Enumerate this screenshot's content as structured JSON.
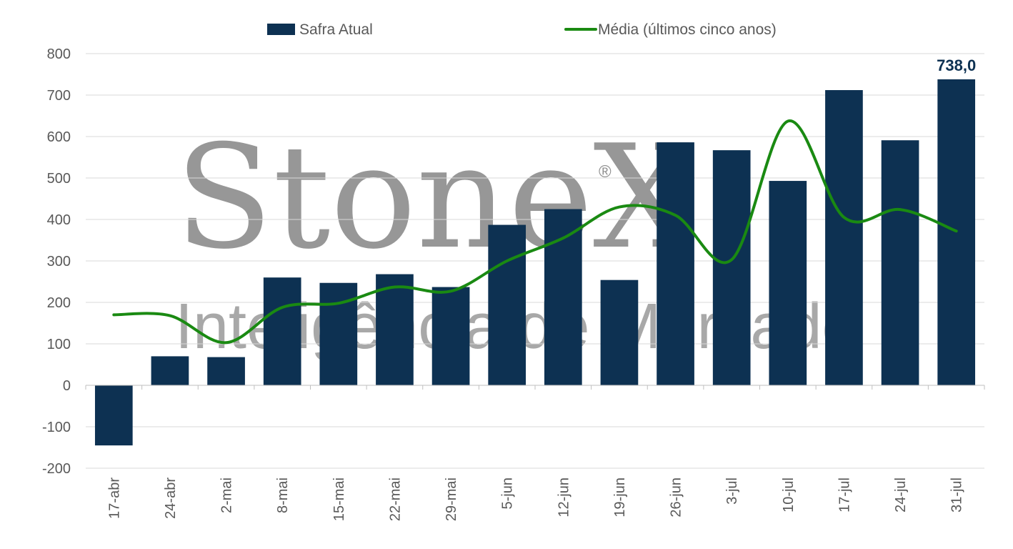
{
  "chart_data": {
    "type": "bar",
    "categories": [
      "17-abr",
      "24-abr",
      "2-mai",
      "8-mai",
      "15-mai",
      "22-mai",
      "29-mai",
      "5-jun",
      "12-jun",
      "19-jun",
      "26-jun",
      "3-jul",
      "10-jul",
      "17-jul",
      "24-jul",
      "31-jul"
    ],
    "series": [
      {
        "name": "Safra Atual",
        "type": "bar",
        "color": "#0d3152",
        "values": [
          -145,
          70,
          68,
          260,
          247,
          268,
          237,
          387,
          425,
          254,
          586,
          567,
          493,
          712,
          591,
          738
        ]
      },
      {
        "name": "Média (últimos cinco anos)",
        "type": "line",
        "color": "#1a8a12",
        "values": [
          170,
          168,
          103,
          188,
          198,
          237,
          227,
          300,
          355,
          430,
          410,
          303,
          637,
          405,
          424,
          372
        ]
      }
    ],
    "ylim": [
      -200,
      800
    ],
    "yticks": [
      -200,
      -100,
      0,
      100,
      200,
      300,
      400,
      500,
      600,
      700,
      800
    ],
    "ytick_labels": [
      "-200",
      "-100",
      "0",
      "100",
      "200",
      "300",
      "400",
      "500",
      "600",
      "700",
      "800"
    ],
    "grid": true,
    "legend_position": "top",
    "data_labels": [
      {
        "category": "31-jul",
        "text": "738,0"
      }
    ],
    "watermark": {
      "brand": "StoneX",
      "registered": "®",
      "tagline": "Inteligência de Mercado"
    }
  }
}
